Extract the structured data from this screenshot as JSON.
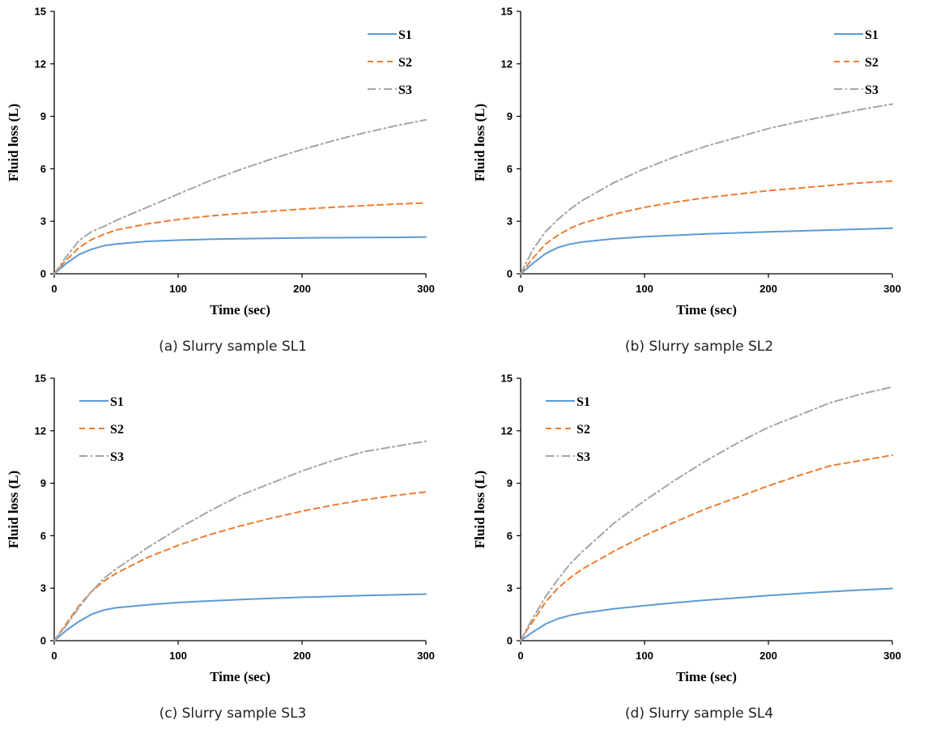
{
  "colors": {
    "S1": "#5b9bd5",
    "S2": "#ed7d31",
    "S3": "#a5a5a5"
  },
  "chart_data": [
    {
      "type": "line",
      "caption": "(a) Slurry sample SL1",
      "xlabel": "Time (sec)",
      "ylabel": "Fluid loss (L)",
      "xlim": [
        0,
        300
      ],
      "ylim": [
        0,
        15
      ],
      "xticks": [
        0,
        100,
        200,
        300
      ],
      "yticks": [
        0,
        3,
        6,
        9,
        12,
        15
      ],
      "legend": "top-right",
      "x": [
        0,
        5,
        10,
        20,
        30,
        40,
        50,
        75,
        100,
        125,
        150,
        175,
        200,
        225,
        250,
        275,
        300
      ],
      "series": [
        {
          "name": "S1",
          "values": [
            0,
            0.3,
            0.6,
            1.1,
            1.4,
            1.6,
            1.7,
            1.85,
            1.92,
            1.97,
            2.0,
            2.03,
            2.05,
            2.06,
            2.07,
            2.08,
            2.1
          ]
        },
        {
          "name": "S2",
          "values": [
            0,
            0.4,
            0.8,
            1.5,
            1.95,
            2.25,
            2.5,
            2.85,
            3.1,
            3.3,
            3.45,
            3.58,
            3.7,
            3.8,
            3.9,
            3.98,
            4.05
          ]
        },
        {
          "name": "S3",
          "values": [
            0,
            0.5,
            1.0,
            1.9,
            2.4,
            2.7,
            3.05,
            3.8,
            4.55,
            5.3,
            5.95,
            6.55,
            7.1,
            7.6,
            8.05,
            8.45,
            8.8
          ]
        }
      ]
    },
    {
      "type": "line",
      "caption": "(b) Slurry sample SL2",
      "xlabel": "Time (sec)",
      "ylabel": "Fluid loss (L)",
      "xlim": [
        0,
        300
      ],
      "ylim": [
        0,
        15
      ],
      "xticks": [
        0,
        100,
        200,
        300
      ],
      "yticks": [
        0,
        3,
        6,
        9,
        12,
        15
      ],
      "legend": "top-right",
      "x": [
        0,
        5,
        10,
        20,
        30,
        40,
        50,
        75,
        100,
        125,
        150,
        175,
        200,
        225,
        250,
        275,
        300
      ],
      "series": [
        {
          "name": "S1",
          "values": [
            0,
            0.3,
            0.6,
            1.15,
            1.5,
            1.7,
            1.82,
            2.0,
            2.12,
            2.2,
            2.28,
            2.34,
            2.4,
            2.45,
            2.5,
            2.55,
            2.6
          ]
        },
        {
          "name": "S2",
          "values": [
            0,
            0.45,
            0.9,
            1.7,
            2.2,
            2.6,
            2.9,
            3.4,
            3.8,
            4.1,
            4.35,
            4.55,
            4.75,
            4.9,
            5.05,
            5.2,
            5.3
          ]
        },
        {
          "name": "S3",
          "values": [
            0,
            0.7,
            1.4,
            2.4,
            3.1,
            3.7,
            4.2,
            5.2,
            6.0,
            6.7,
            7.3,
            7.8,
            8.3,
            8.7,
            9.05,
            9.4,
            9.7
          ]
        }
      ]
    },
    {
      "type": "line",
      "caption": "(c) Slurry sample SL3",
      "xlabel": "Time (sec)",
      "ylabel": "Fluid loss (L)",
      "xlim": [
        0,
        300
      ],
      "ylim": [
        0,
        15
      ],
      "xticks": [
        0,
        100,
        200,
        300
      ],
      "yticks": [
        0,
        3,
        6,
        9,
        12,
        15
      ],
      "legend": "top-left",
      "x": [
        0,
        5,
        10,
        20,
        30,
        40,
        50,
        75,
        100,
        125,
        150,
        175,
        200,
        225,
        250,
        275,
        300
      ],
      "series": [
        {
          "name": "S1",
          "values": [
            0,
            0.3,
            0.6,
            1.1,
            1.5,
            1.75,
            1.88,
            2.05,
            2.18,
            2.27,
            2.35,
            2.42,
            2.48,
            2.53,
            2.58,
            2.62,
            2.66
          ]
        },
        {
          "name": "S2",
          "values": [
            0,
            0.5,
            1.0,
            2.0,
            2.8,
            3.4,
            3.85,
            4.75,
            5.45,
            6.05,
            6.55,
            7.0,
            7.4,
            7.75,
            8.05,
            8.3,
            8.5
          ]
        },
        {
          "name": "S3",
          "values": [
            0,
            0.45,
            0.9,
            1.9,
            2.8,
            3.55,
            4.1,
            5.3,
            6.4,
            7.4,
            8.3,
            9.0,
            9.7,
            10.3,
            10.8,
            11.1,
            11.4
          ]
        }
      ]
    },
    {
      "type": "line",
      "caption": "(d) Slurry sample SL4",
      "xlabel": "Time (sec)",
      "ylabel": "Fluid loss (L)",
      "xlim": [
        0,
        300
      ],
      "ylim": [
        0,
        15
      ],
      "xticks": [
        0,
        100,
        200,
        300
      ],
      "yticks": [
        0,
        3,
        6,
        9,
        12,
        15
      ],
      "legend": "top-left",
      "x": [
        0,
        5,
        10,
        20,
        30,
        40,
        50,
        75,
        100,
        125,
        150,
        175,
        200,
        225,
        250,
        275,
        300
      ],
      "series": [
        {
          "name": "S1",
          "values": [
            0,
            0.25,
            0.5,
            0.95,
            1.25,
            1.45,
            1.58,
            1.82,
            2.0,
            2.17,
            2.32,
            2.45,
            2.58,
            2.7,
            2.8,
            2.9,
            2.98
          ]
        },
        {
          "name": "S2",
          "values": [
            0,
            0.6,
            1.1,
            2.2,
            3.0,
            3.6,
            4.1,
            5.1,
            6.0,
            6.8,
            7.55,
            8.2,
            8.85,
            9.45,
            10.0,
            10.3,
            10.6
          ]
        },
        {
          "name": "S3",
          "values": [
            0,
            0.7,
            1.3,
            2.5,
            3.5,
            4.4,
            5.1,
            6.7,
            8.0,
            9.2,
            10.3,
            11.3,
            12.2,
            12.9,
            13.6,
            14.1,
            14.5
          ]
        }
      ]
    }
  ]
}
